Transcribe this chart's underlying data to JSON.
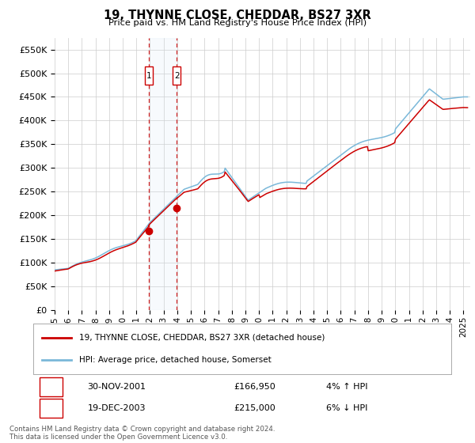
{
  "title": "19, THYNNE CLOSE, CHEDDAR, BS27 3XR",
  "subtitle": "Price paid vs. HM Land Registry's House Price Index (HPI)",
  "legend_line1": "19, THYNNE CLOSE, CHEDDAR, BS27 3XR (detached house)",
  "legend_line2": "HPI: Average price, detached house, Somerset",
  "transaction1_label": "1",
  "transaction1_date": "30-NOV-2001",
  "transaction1_price": "£166,950",
  "transaction1_hpi": "4% ↑ HPI",
  "transaction1_year": 2001.92,
  "transaction1_value": 166950,
  "transaction2_label": "2",
  "transaction2_date": "19-DEC-2003",
  "transaction2_price": "£215,000",
  "transaction2_hpi": "6% ↓ HPI",
  "transaction2_year": 2003.96,
  "transaction2_value": 215000,
  "hpi_color": "#7ab8d9",
  "price_color": "#cc0000",
  "marker_color": "#cc0000",
  "shade_color": "#d8e8f5",
  "vline_color": "#cc0000",
  "background_color": "#ffffff",
  "grid_color": "#cccccc",
  "ylim": [
    0,
    575000
  ],
  "yticks": [
    0,
    50000,
    100000,
    150000,
    200000,
    250000,
    300000,
    350000,
    400000,
    450000,
    500000,
    550000
  ],
  "ytick_labels": [
    "£0",
    "£50K",
    "£100K",
    "£150K",
    "£200K",
    "£250K",
    "£300K",
    "£350K",
    "£400K",
    "£450K",
    "£500K",
    "£550K"
  ],
  "xmin": 1995.0,
  "xmax": 2025.5,
  "xticks": [
    1995,
    1996,
    1997,
    1998,
    1999,
    2000,
    2001,
    2002,
    2003,
    2004,
    2005,
    2006,
    2007,
    2008,
    2009,
    2010,
    2011,
    2012,
    2013,
    2014,
    2015,
    2016,
    2017,
    2018,
    2019,
    2020,
    2021,
    2022,
    2023,
    2024,
    2025
  ],
  "footnote": "Contains HM Land Registry data © Crown copyright and database right 2024.\nThis data is licensed under the Open Government Licence v3.0."
}
